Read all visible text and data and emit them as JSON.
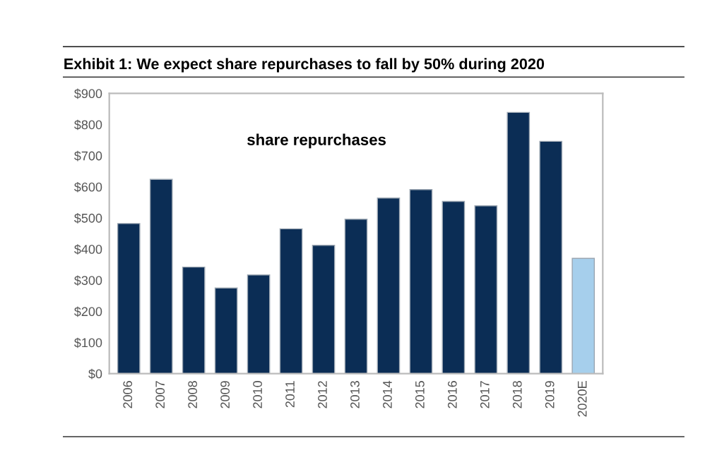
{
  "chart_data": {
    "type": "bar",
    "title": "Exhibit 1: We expect share repurchases to fall by 50% during 2020",
    "categories": [
      "2006",
      "2007",
      "2008",
      "2009",
      "2010",
      "2011",
      "2012",
      "2013",
      "2014",
      "2015",
      "2016",
      "2017",
      "2018",
      "2019",
      "2020E"
    ],
    "values": [
      482,
      624,
      342,
      275,
      317,
      465,
      412,
      496,
      564,
      591,
      553,
      539,
      839,
      746,
      370
    ],
    "colors": [
      "#0b2d55",
      "#0b2d55",
      "#0b2d55",
      "#0b2d55",
      "#0b2d55",
      "#0b2d55",
      "#0b2d55",
      "#0b2d55",
      "#0b2d55",
      "#0b2d55",
      "#0b2d55",
      "#0b2d55",
      "#0b2d55",
      "#0b2d55",
      "#a6cfec"
    ],
    "ylim": [
      0,
      900
    ],
    "yticks": [
      {
        "value": 0,
        "label": "$0"
      },
      {
        "value": 100,
        "label": "$100"
      },
      {
        "value": 200,
        "label": "$200"
      },
      {
        "value": 300,
        "label": "$300"
      },
      {
        "value": 400,
        "label": "$400"
      },
      {
        "value": 500,
        "label": "$500"
      },
      {
        "value": 600,
        "label": "$600"
      },
      {
        "value": 700,
        "label": "$700"
      },
      {
        "value": 800,
        "label": "$800"
      },
      {
        "value": 900,
        "label": "$900"
      }
    ],
    "annotations": [
      "share repurchases"
    ],
    "grid": false,
    "legend": false
  }
}
